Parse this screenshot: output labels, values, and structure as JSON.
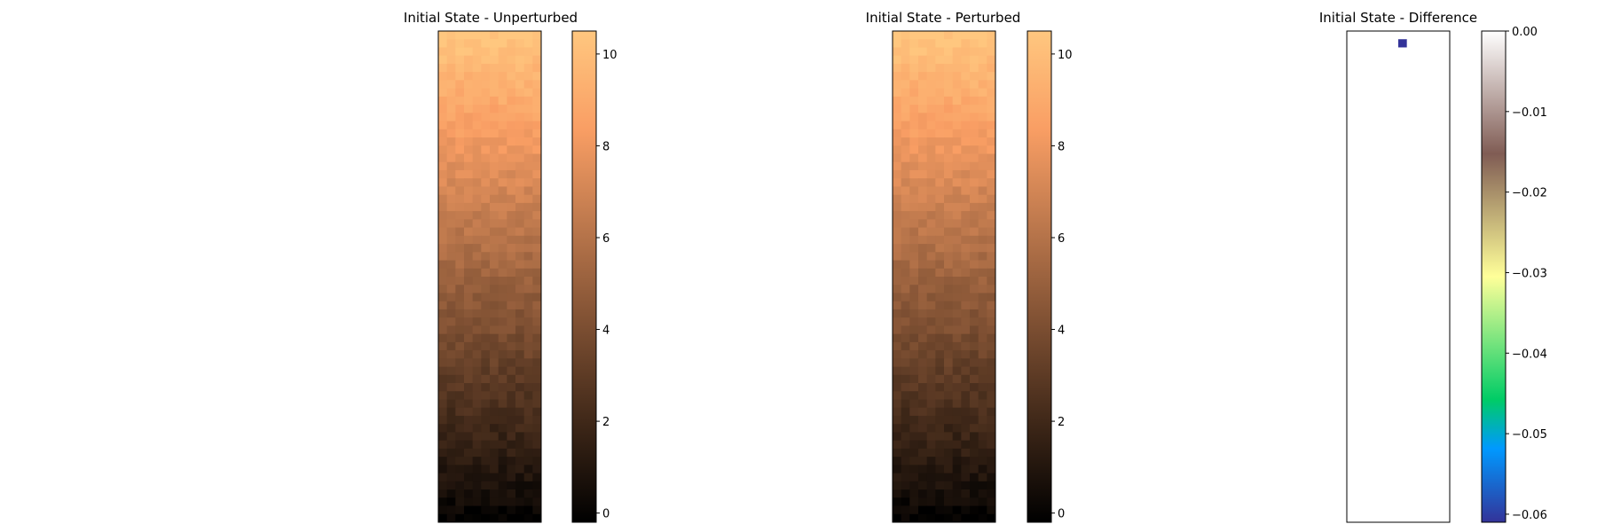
{
  "chart_data": [
    {
      "type": "heatmap",
      "title": "Initial State - Unperturbed",
      "colormap": "copper",
      "grid_shape": [
        60,
        12
      ],
      "value_range": [
        -0.2,
        10.5
      ],
      "field": "values increase from ~0 at the bottom row to ~10.5 at the top row, with small random noise",
      "axes_visible": false,
      "colorbar": {
        "ticks": [
          0,
          2,
          4,
          6,
          8,
          10
        ],
        "tick_labels": [
          "0",
          "2",
          "4",
          "6",
          "8",
          "10"
        ],
        "range": [
          -0.2,
          10.5
        ]
      }
    },
    {
      "type": "heatmap",
      "title": "Initial State - Perturbed",
      "colormap": "copper",
      "grid_shape": [
        60,
        12
      ],
      "value_range": [
        -0.2,
        10.5
      ],
      "field": "same as unperturbed except a single perturbed cell near the top (row 1, col 6)",
      "axes_visible": false,
      "colorbar": {
        "ticks": [
          0,
          2,
          4,
          6,
          8,
          10
        ],
        "tick_labels": [
          "0",
          "2",
          "4",
          "6",
          "8",
          "10"
        ],
        "range": [
          -0.2,
          10.5
        ]
      }
    },
    {
      "type": "heatmap",
      "title": "Initial State - Difference",
      "colormap": "terrain",
      "grid_shape": [
        60,
        12
      ],
      "value_range": [
        -0.061,
        0.0
      ],
      "nonzero_cells": [
        {
          "row": 1,
          "col": 6,
          "value": -0.061
        }
      ],
      "background_value": 0.0,
      "axes_visible": false,
      "colorbar": {
        "ticks": [
          0.0,
          -0.01,
          -0.02,
          -0.03,
          -0.04,
          -0.05,
          -0.06
        ],
        "tick_labels": [
          "0.00",
          "−0.01",
          "−0.02",
          "−0.03",
          "−0.04",
          "−0.05",
          "−0.06"
        ],
        "range": [
          -0.061,
          0.0
        ]
      }
    }
  ]
}
